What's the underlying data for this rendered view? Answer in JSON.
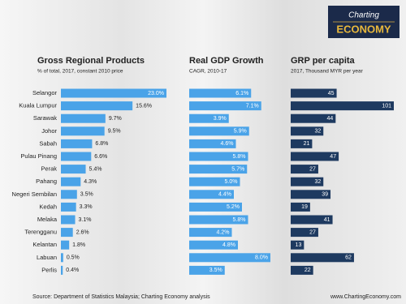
{
  "logo": {
    "line1": "Charting",
    "line2": "ECONOMY"
  },
  "chart_data": [
    {
      "type": "hbar",
      "title": "Gross Regional Products",
      "subtitle": "% of total, 2017, constant 2010 price",
      "color": "#4aa3e8",
      "categories": [
        "Selangor",
        "Kuala Lumpur",
        "Sarawak",
        "Johor",
        "Sabah",
        "Pulau Pinang",
        "Perak",
        "Pahang",
        "Negeri Sembilan",
        "Kedah",
        "Melaka",
        "Terengganu",
        "Kelantan",
        "Labuan",
        "Perlis"
      ],
      "values": [
        23.0,
        15.6,
        9.7,
        9.5,
        6.8,
        6.6,
        5.4,
        4.3,
        3.5,
        3.3,
        3.1,
        2.6,
        1.8,
        0.5,
        0.4
      ],
      "value_labels": [
        "23.0%",
        "15.6%",
        "9.7%",
        "9.5%",
        "6.8%",
        "6.6%",
        "5.4%",
        "4.3%",
        "3.5%",
        "3.3%",
        "3.1%",
        "2.6%",
        "1.8%",
        "0.5%",
        "0.4%"
      ]
    },
    {
      "type": "hbar",
      "title": "Real GDP Growth",
      "subtitle": "CAGR, 2010-17",
      "color": "#4aa3e8",
      "values": [
        6.1,
        7.1,
        3.9,
        5.9,
        4.6,
        5.8,
        5.7,
        5.0,
        4.4,
        5.2,
        5.8,
        4.2,
        4.8,
        8.0,
        3.5
      ],
      "value_labels": [
        "6.1%",
        "7.1%",
        "3.9%",
        "5.9%",
        "4.6%",
        "5.8%",
        "5.7%",
        "5.0%",
        "4.4%",
        "5.2%",
        "5.8%",
        "4.2%",
        "4.8%",
        "8.0%",
        "3.5%"
      ]
    },
    {
      "type": "hbar",
      "title": "GRP per capita",
      "subtitle": "2017, Thousand MYR per year",
      "color": "#1e3a60",
      "values": [
        45,
        101,
        44,
        32,
        21,
        47,
        27,
        32,
        39,
        19,
        41,
        27,
        13,
        62,
        22
      ]
    }
  ],
  "footer": {
    "source": "Source: Department of Statistics Malaysia; Charting Economy analysis",
    "website": "www.ChartingEconomy.com"
  }
}
